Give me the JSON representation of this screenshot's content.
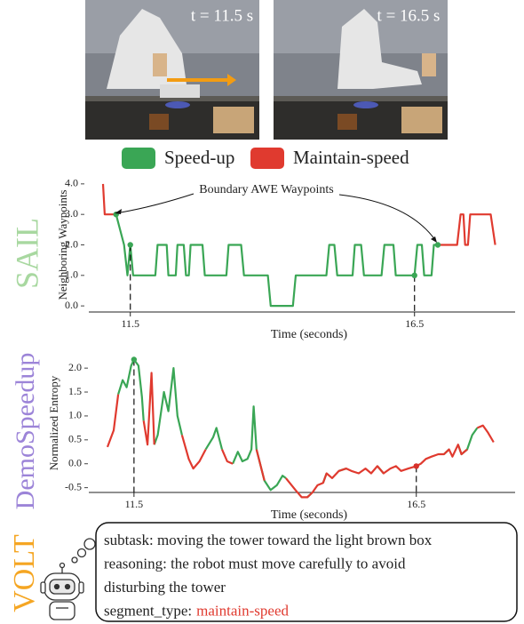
{
  "images": [
    {
      "label": "t = 11.5 s"
    },
    {
      "label": "t = 16.5 s"
    }
  ],
  "chart_data": [
    {
      "type": "line",
      "method": "SAIL",
      "method_color": "#a8d8a0",
      "ylabel": "Neighboring Waypoints",
      "xlabel": "Time (seconds)",
      "annotation": "Boundary AWE Waypoints",
      "x": [
        11.02,
        11.05,
        11.25,
        11.39,
        11.45,
        11.5,
        11.55,
        11.94,
        11.98,
        12.14,
        12.17,
        12.3,
        12.33,
        12.44,
        12.48,
        12.53,
        12.56,
        12.77,
        12.81,
        13.19,
        13.23,
        13.45,
        13.5,
        13.92,
        13.97,
        14.36,
        14.41,
        14.95,
        15.0,
        15.09,
        15.14,
        15.41,
        15.45,
        15.56,
        15.61,
        15.92,
        15.97,
        16.13,
        16.17,
        16.5,
        16.55,
        16.63,
        16.67,
        16.8,
        16.84,
        16.91,
        17.25,
        17.31,
        17.36,
        17.39,
        17.44,
        17.48,
        17.84,
        17.92
      ],
      "series": [
        {
          "name": "Speed-up",
          "color": "#3aa655",
          "values": [
            null,
            null,
            3,
            2,
            1,
            2,
            1,
            1,
            2,
            2,
            1,
            1,
            2,
            2,
            1,
            1,
            2,
            2,
            1,
            1,
            2,
            2,
            1,
            1,
            0,
            0,
            1,
            1,
            2,
            2,
            1,
            1,
            2,
            2,
            1,
            1,
            2,
            2,
            1,
            1,
            2,
            2,
            1,
            1,
            2,
            2,
            null,
            null,
            null,
            null,
            null,
            null,
            null,
            null
          ]
        },
        {
          "name": "Maintain-speed",
          "color": "#e03a2f",
          "values": [
            4,
            3,
            3,
            null,
            null,
            null,
            null,
            null,
            null,
            null,
            null,
            null,
            null,
            null,
            null,
            null,
            null,
            null,
            null,
            null,
            null,
            null,
            null,
            null,
            null,
            null,
            null,
            null,
            null,
            null,
            null,
            null,
            null,
            null,
            null,
            null,
            null,
            null,
            null,
            null,
            null,
            null,
            null,
            null,
            null,
            2,
            2,
            3,
            3,
            2,
            2,
            3,
            3,
            2
          ]
        }
      ],
      "points": [
        {
          "x": 11.25,
          "y": 3,
          "color": "#3aa655"
        },
        {
          "x": 11.5,
          "y": 2,
          "color": "#3aa655"
        },
        {
          "x": 16.5,
          "y": 1,
          "color": "#3aa655"
        },
        {
          "x": 16.91,
          "y": 2,
          "color": "#3aa655"
        }
      ],
      "xlim": [
        10.77,
        18.27
      ],
      "xticks": [
        11.5,
        16.5
      ],
      "ylim": [
        -0.2,
        4.2
      ],
      "yticks": [
        {
          "value": 0,
          "label": "0.0"
        },
        {
          "value": 1,
          "label": "1.0"
        },
        {
          "value": 2,
          "label": "2.0"
        },
        {
          "value": 3,
          "label": "3.0"
        },
        {
          "value": 4,
          "label": "4.0"
        }
      ]
    },
    {
      "type": "line",
      "method": "DemoSpeedup",
      "method_color": "#9c84d8",
      "ylabel": "Normalized Entropy",
      "xlabel": "Time (seconds)",
      "x": [
        11.03,
        11.14,
        11.22,
        11.3,
        11.37,
        11.45,
        11.5,
        11.58,
        11.64,
        11.67,
        11.74,
        11.81,
        11.86,
        11.92,
        12.03,
        12.11,
        12.2,
        12.27,
        12.35,
        12.47,
        12.55,
        12.66,
        12.77,
        12.9,
        12.96,
        13.06,
        13.15,
        13.25,
        13.34,
        13.42,
        13.51,
        13.58,
        13.62,
        13.67,
        13.81,
        13.92,
        14.03,
        14.13,
        14.19,
        14.36,
        14.47,
        14.57,
        14.66,
        14.75,
        14.85,
        14.91,
        15.01,
        15.13,
        15.26,
        15.35,
        15.48,
        15.6,
        15.7,
        15.81,
        15.92,
        16.04,
        16.14,
        16.23,
        16.36,
        16.5,
        16.58,
        16.67,
        16.77,
        16.89,
        16.99,
        17.08,
        17.14,
        17.24,
        17.3,
        17.4,
        17.49,
        17.58,
        17.68,
        17.77,
        17.87
      ],
      "series": [
        {
          "color": "#3aa655",
          "values": [
            null,
            null,
            1.45,
            1.75,
            1.6,
            2.05,
            2.18,
            2.05,
            1.4,
            0.9,
            null,
            null,
            0.4,
            0.6,
            1.5,
            1.1,
            2.0,
            1.0,
            0.6,
            null,
            null,
            null,
            0.3,
            0.55,
            0.75,
            0.3,
            null,
            0.0,
            0.25,
            0.05,
            0.1,
            0.3,
            1.2,
            0.3,
            -0.35,
            -0.55,
            -0.45,
            -0.25,
            -0.3,
            null,
            null,
            -0.7,
            -0.6,
            null,
            -0.4,
            -0.2,
            null,
            -0.15,
            -0.1,
            null,
            null,
            null,
            null,
            -0.05,
            -0.2,
            null,
            null,
            null,
            null,
            null,
            null,
            null,
            null,
            null,
            0.2,
            0.3,
            null,
            0.4,
            0.2,
            0.3,
            0.6,
            0.75,
            null,
            null,
            null
          ]
        },
        {
          "color": "#e03a2f",
          "values": [
            0.35,
            0.7,
            1.45,
            null,
            null,
            null,
            null,
            null,
            null,
            0.9,
            0.4,
            1.9,
            0.4,
            null,
            null,
            null,
            null,
            null,
            0.6,
            0.1,
            -0.1,
            0.05,
            0.3,
            null,
            null,
            0.3,
            0.05,
            0.0,
            null,
            null,
            null,
            null,
            null,
            0.3,
            -0.35,
            null,
            null,
            null,
            -0.3,
            -0.55,
            -0.7,
            -0.7,
            -0.6,
            -0.45,
            -0.4,
            -0.2,
            -0.3,
            -0.15,
            -0.1,
            -0.15,
            -0.2,
            -0.1,
            -0.2,
            -0.05,
            -0.2,
            -0.1,
            -0.05,
            -0.15,
            -0.1,
            -0.05,
            0.0,
            0.1,
            0.15,
            0.2,
            0.2,
            0.3,
            0.15,
            0.4,
            0.2,
            0.3,
            null,
            0.75,
            0.8,
            0.65,
            0.45
          ]
        }
      ],
      "points": [
        {
          "x": 11.5,
          "y": 2.18,
          "color": "#3aa655"
        },
        {
          "x": 16.5,
          "y": -0.05,
          "color": "#d7302a"
        }
      ],
      "xlim": [
        10.7,
        18.25
      ],
      "xticks": [
        11.5,
        16.5
      ],
      "ylim": [
        -0.6,
        2.3
      ],
      "yticks": [
        -0.5,
        {
          "value": 0,
          "label": "0.0"
        },
        0.5,
        {
          "value": 1,
          "label": "1.0"
        },
        1.5,
        {
          "value": 2,
          "label": "2.0"
        }
      ]
    }
  ],
  "volt": {
    "method": "VOLT",
    "lines": [
      "subtask: moving the tower toward the light brown box",
      "reasoning: the robot must move carefully to avoid",
      "disturbing the tower"
    ],
    "segment_label": "segment_type:",
    "segment_value": "maintain-speed",
    "segment_color": "#e03a2f"
  }
}
